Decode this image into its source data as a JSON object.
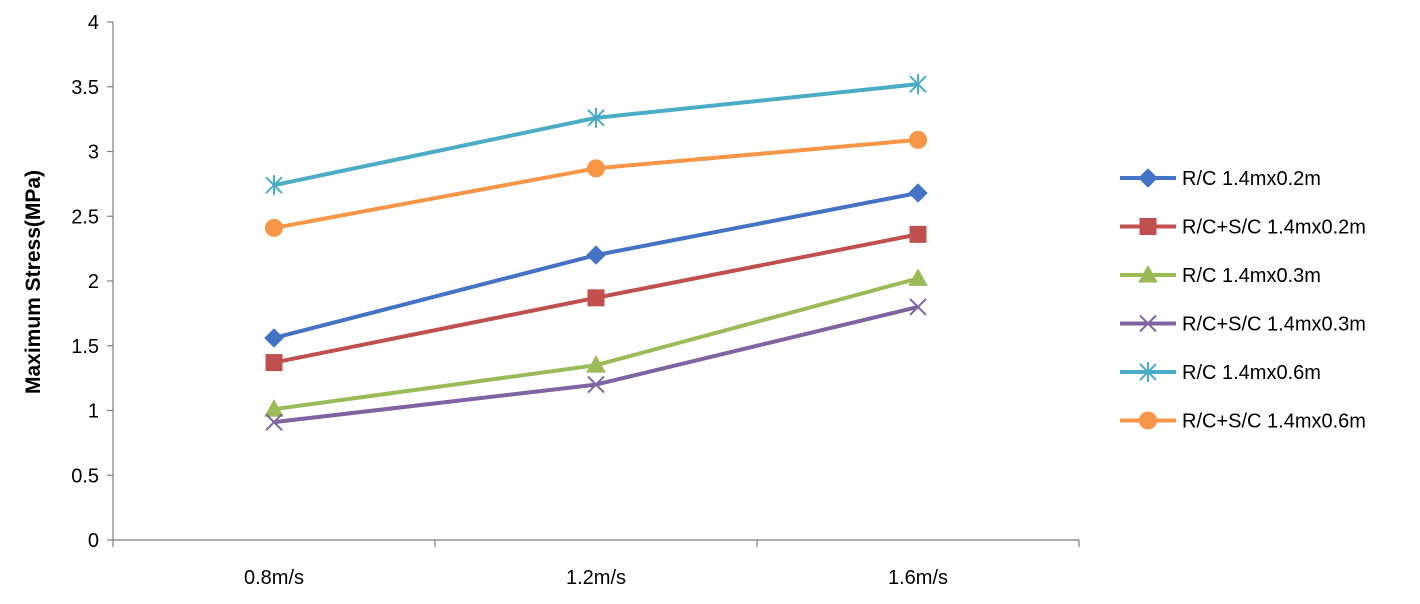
{
  "chart_data": {
    "type": "line",
    "title": "",
    "xlabel": "",
    "ylabel": "Maximum Stress(MPa)",
    "ylim": [
      0,
      4
    ],
    "yticks": [
      "0",
      "0.5",
      "1",
      "1.5",
      "2",
      "2.5",
      "3",
      "3.5",
      "4"
    ],
    "grid": false,
    "legend_position": "right",
    "categories": [
      "0.8m/s",
      "1.2m/s",
      "1.6m/s"
    ],
    "series": [
      {
        "name": "R/C 1.4mx0.2m",
        "color": "#4472C4",
        "marker": "diamond",
        "values": [
          1.56,
          2.2,
          2.68
        ]
      },
      {
        "name": "R/C+S/C 1.4mx0.2m",
        "color": "#C0504D",
        "marker": "square",
        "values": [
          1.37,
          1.87,
          2.36
        ]
      },
      {
        "name": "R/C 1.4mx0.3m",
        "color": "#9BBB59",
        "marker": "triangle",
        "values": [
          1.01,
          1.35,
          2.02
        ]
      },
      {
        "name": "R/C+S/C 1.4mx0.3m",
        "color": "#8064A2",
        "marker": "x",
        "values": [
          0.91,
          1.2,
          1.8
        ]
      },
      {
        "name": "R/C 1.4mx0.6m",
        "color": "#4BACC6",
        "marker": "star",
        "values": [
          2.74,
          3.26,
          3.52
        ]
      },
      {
        "name": "R/C+S/C 1.4mx0.6m",
        "color": "#F79646",
        "marker": "circle",
        "values": [
          2.41,
          2.87,
          3.09
        ]
      }
    ]
  }
}
